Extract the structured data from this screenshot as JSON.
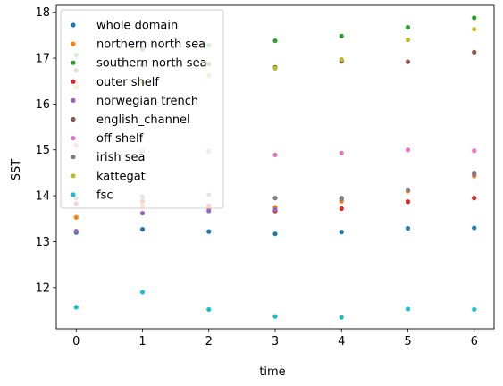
{
  "chart_data": {
    "type": "scatter",
    "title": "",
    "xlabel": "time",
    "ylabel": "SST",
    "xlim": [
      -0.3,
      6.3
    ],
    "ylim": [
      11.1,
      18.15
    ],
    "xticks": [
      0,
      1,
      2,
      3,
      4,
      5,
      6
    ],
    "yticks": [
      12,
      13,
      14,
      15,
      16,
      17,
      18
    ],
    "legend_position": "upper-left",
    "x": [
      0,
      1,
      2,
      3,
      4,
      5,
      6
    ],
    "series": [
      {
        "name": "whole domain",
        "color": "#1f77b4",
        "values": [
          13.2,
          13.27,
          13.22,
          13.17,
          13.21,
          13.29,
          13.3
        ]
      },
      {
        "name": "northern north sea",
        "color": "#ff7f0e",
        "values": [
          13.53,
          13.78,
          13.73,
          13.75,
          13.88,
          14.1,
          14.43
        ]
      },
      {
        "name": "southern north sea",
        "color": "#2ca02c",
        "values": [
          17.07,
          17.2,
          17.28,
          17.38,
          17.48,
          17.67,
          17.88
        ]
      },
      {
        "name": "outer shelf",
        "color": "#d62728",
        "values": [
          13.83,
          13.88,
          13.78,
          13.67,
          13.72,
          13.87,
          13.95
        ]
      },
      {
        "name": "norwegian trench",
        "color": "#9467bd",
        "values": [
          13.23,
          13.62,
          13.67,
          13.7,
          13.93,
          14.13,
          14.47
        ]
      },
      {
        "name": "english_channel",
        "color": "#8c564b",
        "values": [
          16.73,
          16.85,
          16.87,
          16.8,
          16.93,
          16.92,
          17.13
        ]
      },
      {
        "name": "off shelf",
        "color": "#e377c2",
        "values": [
          15.1,
          14.97,
          14.97,
          14.89,
          14.93,
          15.0,
          14.98
        ]
      },
      {
        "name": "irish sea",
        "color": "#7f7f7f",
        "values": [
          13.95,
          13.98,
          14.02,
          13.95,
          13.95,
          14.13,
          14.5
        ]
      },
      {
        "name": "kattegat",
        "color": "#bcbd22",
        "values": [
          16.37,
          16.47,
          16.62,
          16.78,
          16.97,
          17.4,
          17.63
        ]
      },
      {
        "name": "fsc",
        "color": "#17becf",
        "values": [
          11.57,
          11.9,
          11.52,
          11.37,
          11.35,
          11.53,
          11.52
        ]
      }
    ]
  }
}
